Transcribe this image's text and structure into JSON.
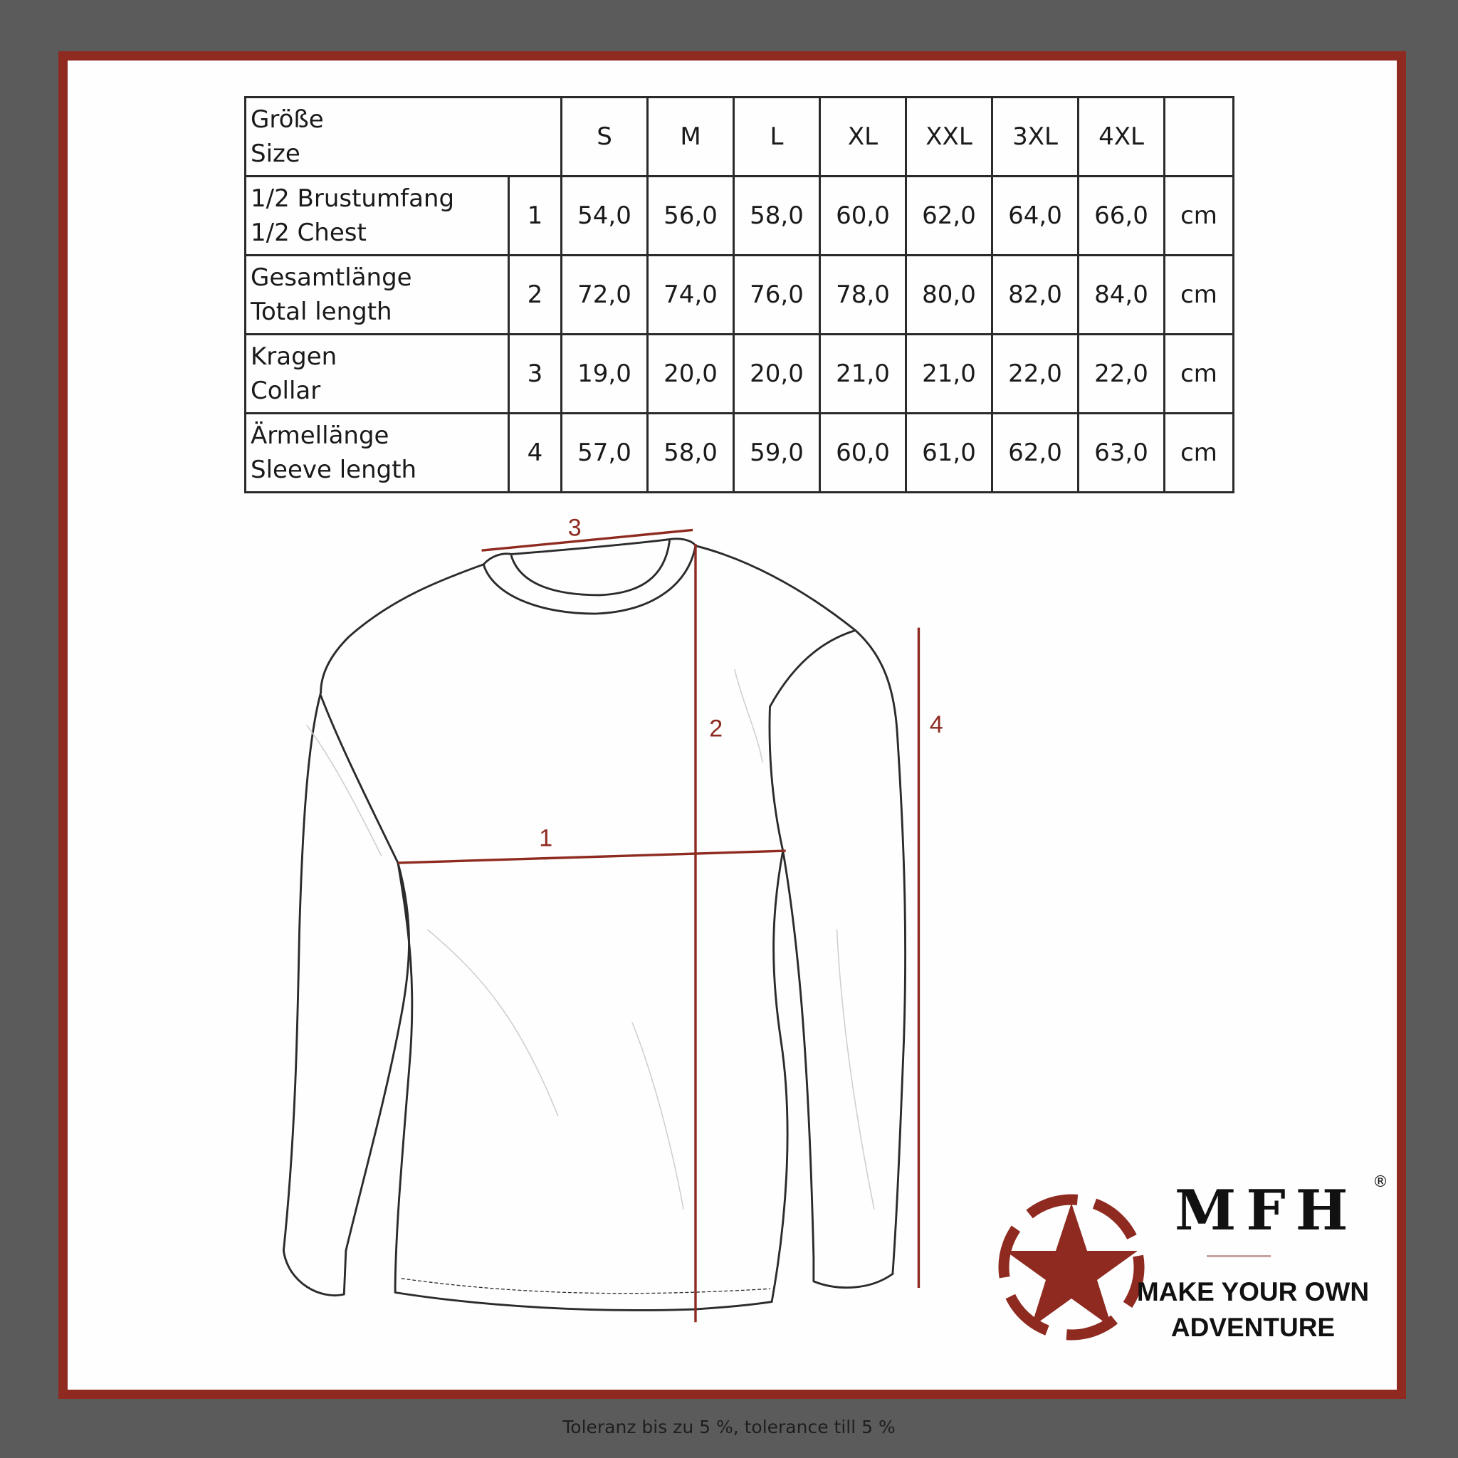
{
  "table": {
    "header": {
      "label_de": "Größe",
      "label_en": "Size",
      "sizes": [
        "S",
        "M",
        "L",
        "XL",
        "XXL",
        "3XL",
        "4XL"
      ]
    },
    "rows": [
      {
        "label_de": "1/2 Brustumfang",
        "label_en": "1/2 Chest",
        "number": "1",
        "values": [
          "54,0",
          "56,0",
          "58,0",
          "60,0",
          "62,0",
          "64,0",
          "66,0"
        ],
        "unit": "cm"
      },
      {
        "label_de": "Gesamtlänge",
        "label_en": "Total length",
        "number": "2",
        "values": [
          "72,0",
          "74,0",
          "76,0",
          "78,0",
          "80,0",
          "82,0",
          "84,0"
        ],
        "unit": "cm"
      },
      {
        "label_de": "Kragen",
        "label_en": "Collar",
        "number": "3",
        "values": [
          "19,0",
          "20,0",
          "20,0",
          "21,0",
          "21,0",
          "22,0",
          "22,0"
        ],
        "unit": "cm"
      },
      {
        "label_de": "Ärmellänge",
        "label_en": "Sleeve length",
        "number": "4",
        "values": [
          "57,0",
          "58,0",
          "59,0",
          "60,0",
          "61,0",
          "62,0",
          "63,0"
        ],
        "unit": "cm"
      }
    ]
  },
  "diagram": {
    "markers": [
      "1",
      "2",
      "3",
      "4"
    ]
  },
  "logo": {
    "brand": "MFH",
    "registered": "®",
    "tagline_line1": "MAKE YOUR OWN",
    "tagline_line2": "ADVENTURE"
  },
  "footer": {
    "tolerance": "Toleranz bis zu 5 %, tolerance till 5 %"
  },
  "colors": {
    "frame": "#8e2a20",
    "background": "#5b5b5b",
    "measure_lines": "#8e2a20"
  }
}
